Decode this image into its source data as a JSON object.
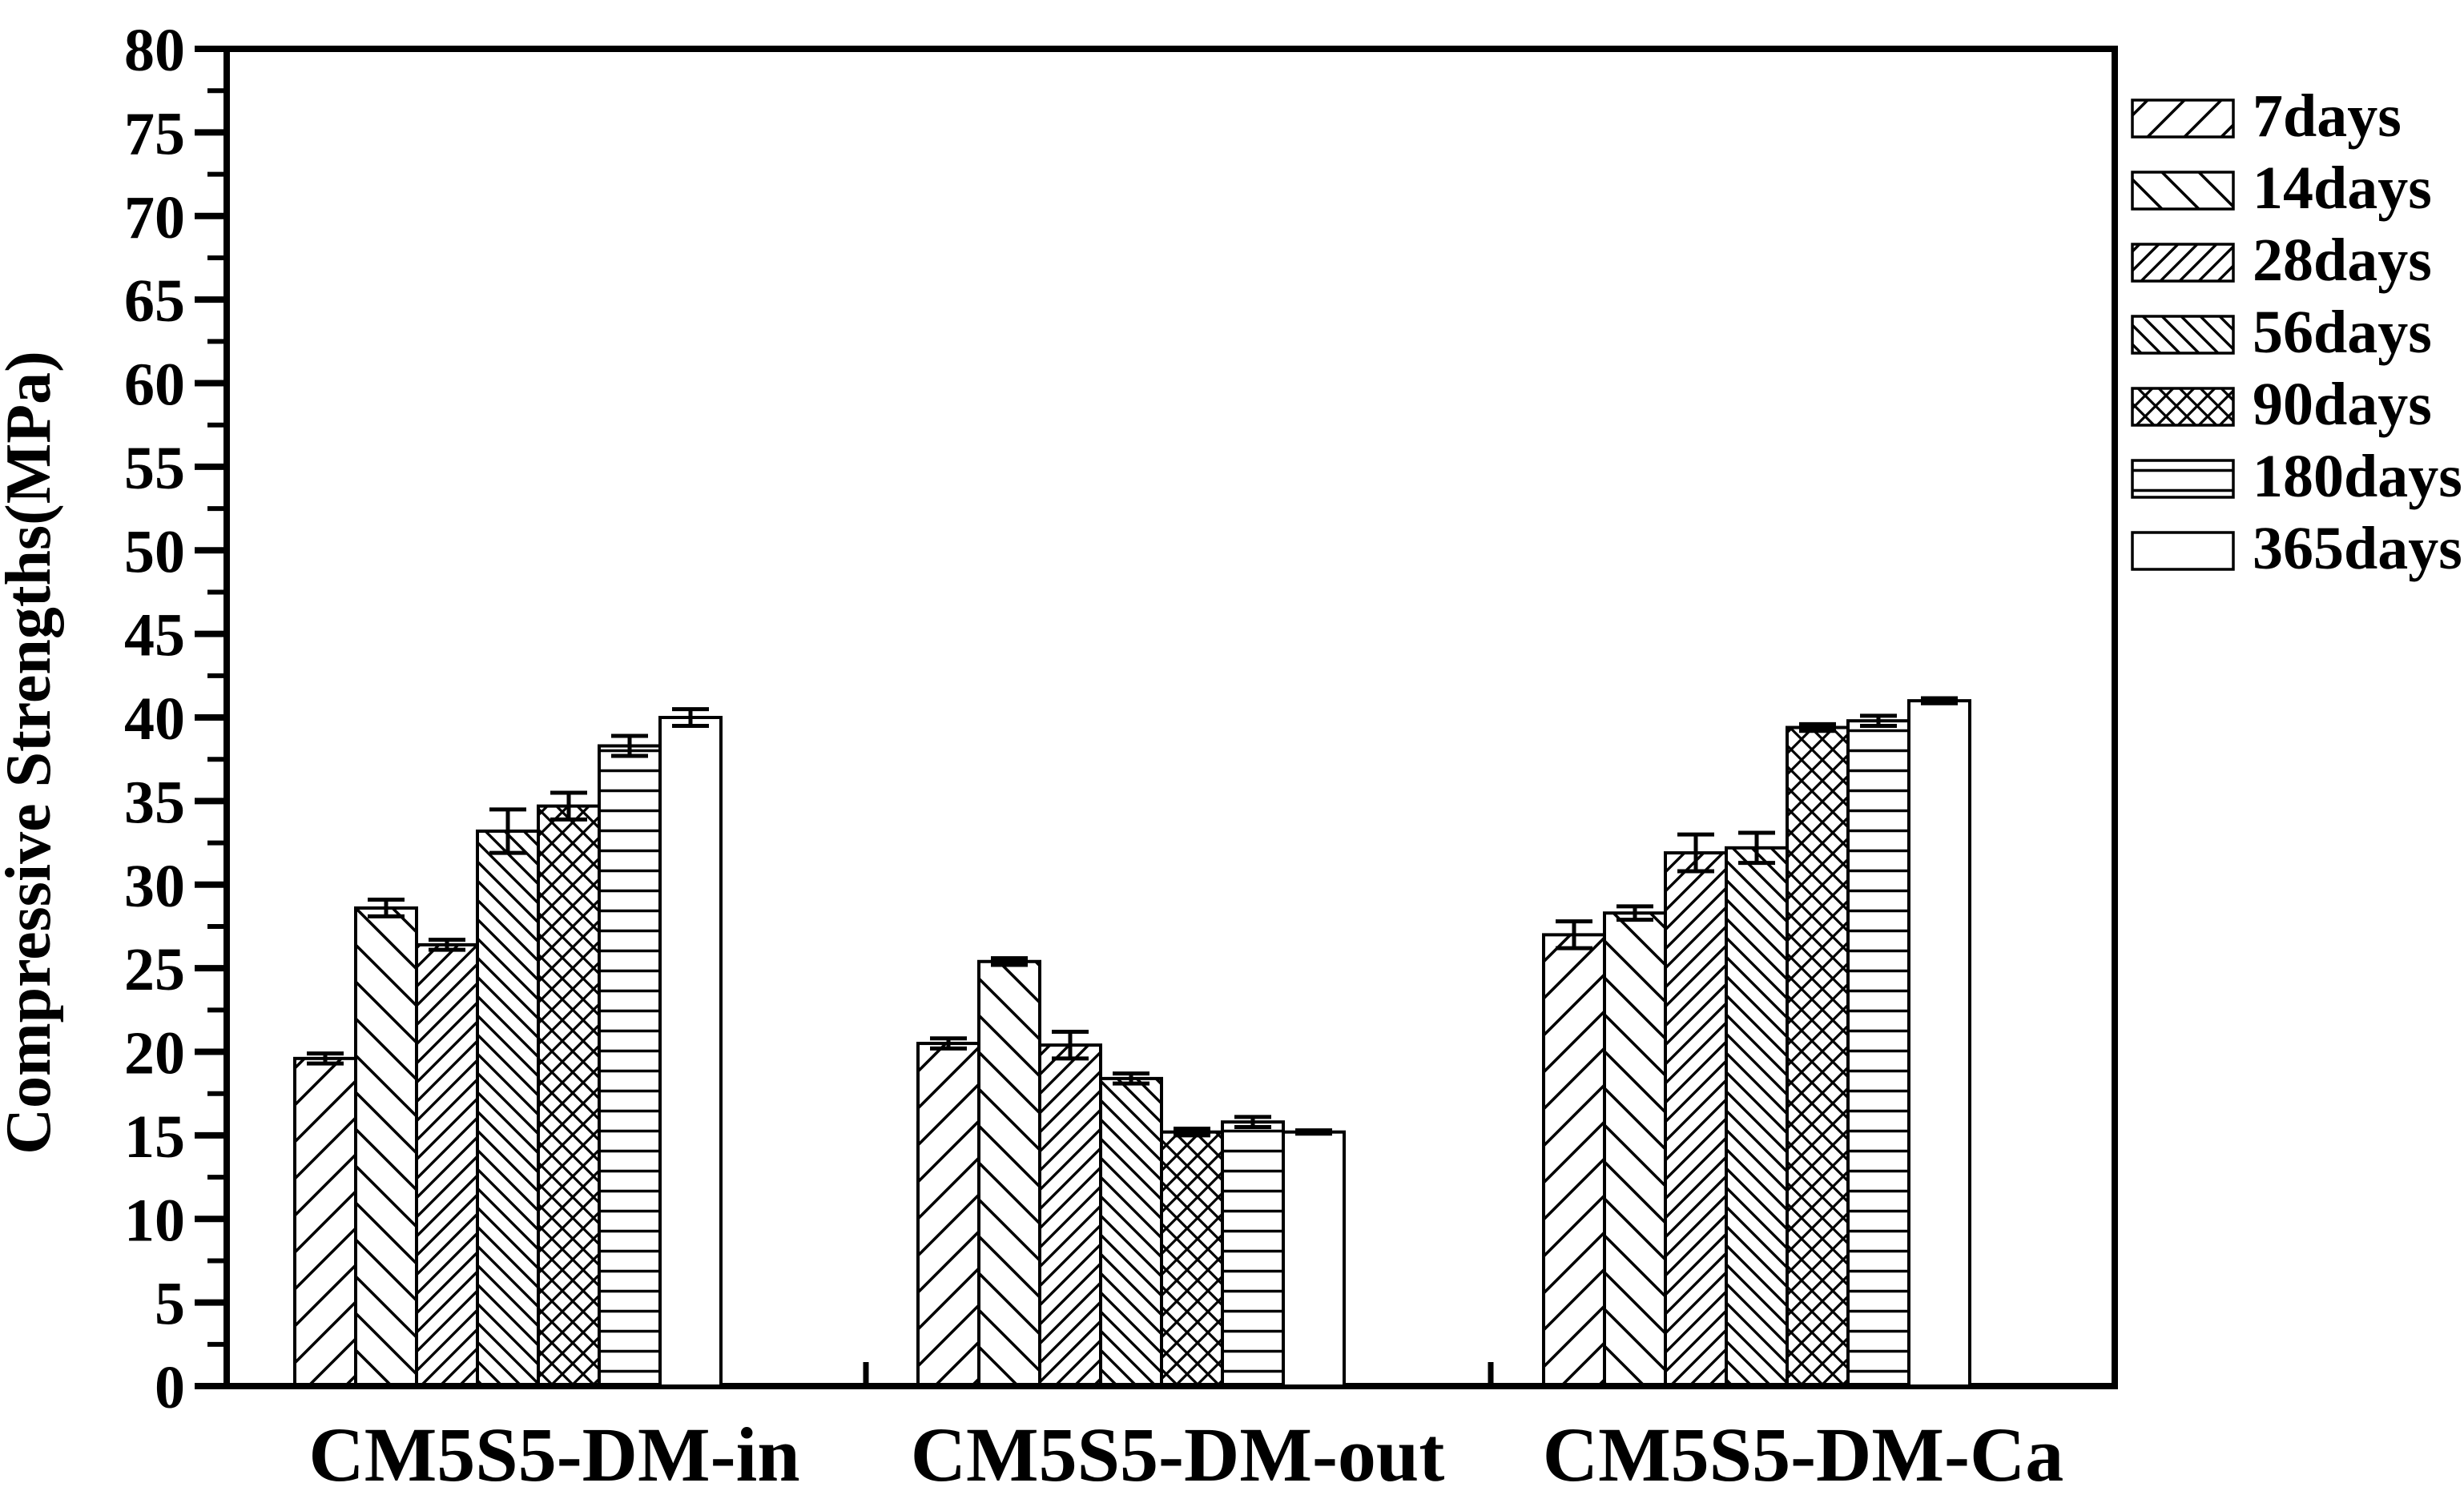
{
  "figure": {
    "background_color": "#ffffff",
    "ink_color": "#000000"
  },
  "chart_data": {
    "type": "bar",
    "title": "",
    "xlabel": "",
    "ylabel": "Compressive Strengths(MPa)",
    "ylim": [
      0,
      80
    ],
    "y_major_step": 5,
    "y_minor_step": 2.5,
    "y_tick_labels": [
      "0",
      "5",
      "10",
      "15",
      "20",
      "25",
      "30",
      "35",
      "40",
      "45",
      "50",
      "55",
      "60",
      "65",
      "70",
      "75",
      "80"
    ],
    "grid": false,
    "legend_position": "outside-top-right",
    "error_bars": true,
    "categories": [
      "CM5S5-DM-in",
      "CM5S5-DM-out",
      "CM5S5-DM-Ca"
    ],
    "series": [
      {
        "name": "7days",
        "pattern": "diag-up-sparse",
        "values": [
          19.6,
          20.5,
          27.0
        ],
        "errors": [
          0.3,
          0.3,
          0.8
        ]
      },
      {
        "name": "14days",
        "pattern": "diag-down-sparse",
        "values": [
          28.6,
          25.4,
          28.3
        ],
        "errors": [
          0.5,
          0.2,
          0.4
        ]
      },
      {
        "name": "28days",
        "pattern": "diag-up-dense",
        "values": [
          26.4,
          20.4,
          31.9
        ],
        "errors": [
          0.3,
          0.8,
          1.1
        ]
      },
      {
        "name": "56days",
        "pattern": "diag-down-dense",
        "values": [
          33.2,
          18.4,
          32.2
        ],
        "errors": [
          1.3,
          0.3,
          0.9
        ]
      },
      {
        "name": "90days",
        "pattern": "cross-diag",
        "values": [
          34.7,
          15.2,
          39.4
        ],
        "errors": [
          0.8,
          0.2,
          0.2
        ]
      },
      {
        "name": "180days",
        "pattern": "horizontal-lines",
        "values": [
          38.3,
          15.8,
          39.8
        ],
        "errors": [
          0.6,
          0.3,
          0.3
        ]
      },
      {
        "name": "365days",
        "pattern": "none",
        "values": [
          40.0,
          15.2,
          41.0
        ],
        "errors": [
          0.5,
          0.1,
          0.15
        ]
      }
    ],
    "colors": {
      "stroke": "#000000",
      "bar_fill": "#ffffff",
      "background": "#ffffff"
    }
  }
}
